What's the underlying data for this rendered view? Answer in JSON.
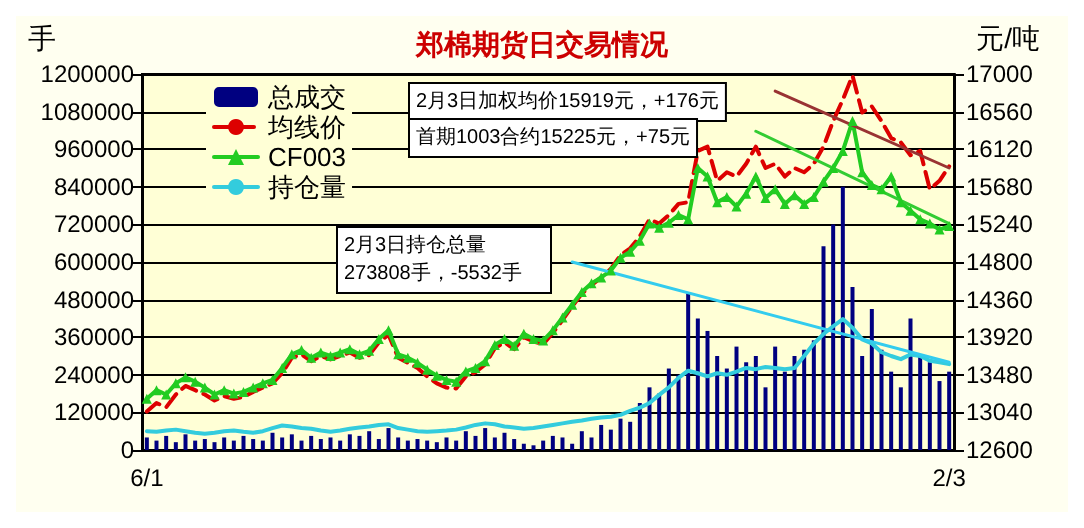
{
  "chart_data": {
    "type": "line",
    "title": "郑棉期货日交易情况",
    "ylabel": "手",
    "y2label": "元/吨",
    "categories": [
      "6/1",
      null,
      null,
      null,
      null,
      null,
      null,
      null,
      null,
      null,
      null,
      null,
      null,
      null,
      null,
      null,
      null,
      null,
      null,
      null,
      null,
      null,
      null,
      null,
      null,
      null,
      null,
      null,
      null,
      null,
      null,
      null,
      null,
      null,
      null,
      null,
      null,
      null,
      null,
      null,
      null,
      null,
      null,
      null,
      null,
      null,
      null,
      null,
      null,
      null,
      null,
      null,
      null,
      null,
      null,
      null,
      null,
      null,
      null,
      null,
      null,
      null,
      null,
      null,
      null,
      null,
      null,
      null,
      null,
      null,
      null,
      null,
      null,
      null,
      null,
      null,
      null,
      null,
      null,
      null,
      null,
      null,
      null,
      "2/3"
    ],
    "ylim": [
      0,
      1200000
    ],
    "yticks": [
      0,
      120000,
      240000,
      360000,
      480000,
      600000,
      720000,
      840000,
      960000,
      1080000,
      1200000
    ],
    "y2lim": [
      12600,
      17000
    ],
    "y2ticks": [
      12600,
      13040,
      13480,
      13920,
      14360,
      14800,
      15240,
      15680,
      16120,
      16560,
      17000
    ],
    "grid": "y",
    "legend": "top left",
    "series": [
      {
        "name": "总成交",
        "type": "bar",
        "color": "#000080",
        "values": [
          40000,
          30000,
          45000,
          25000,
          50000,
          30000,
          35000,
          25000,
          40000,
          30000,
          45000,
          35000,
          30000,
          55000,
          40000,
          50000,
          30000,
          45000,
          35000,
          40000,
          30000,
          50000,
          45000,
          60000,
          35000,
          70000,
          40000,
          30000,
          35000,
          30000,
          25000,
          40000,
          30000,
          60000,
          45000,
          70000,
          40000,
          55000,
          35000,
          20000,
          15000,
          30000,
          45000,
          40000,
          20000,
          60000,
          40000,
          80000,
          65000,
          100000,
          90000,
          150000,
          200000,
          180000,
          260000,
          240000,
          500000,
          420000,
          380000,
          300000,
          260000,
          330000,
          280000,
          300000,
          200000,
          330000,
          250000,
          300000,
          320000,
          350000,
          650000,
          720000,
          840000,
          520000,
          300000,
          450000,
          320000,
          250000,
          200000,
          420000,
          300000,
          280000,
          220000,
          250000
        ]
      },
      {
        "name": "均线价",
        "axis": "y2",
        "color": "#dd0000",
        "line_style": "dashed",
        "marker": "none",
        "values": [
          13050,
          13150,
          13100,
          13250,
          13350,
          13300,
          13250,
          13180,
          13230,
          13200,
          13220,
          13280,
          13330,
          13380,
          13500,
          13680,
          13720,
          13640,
          13700,
          13660,
          13700,
          13740,
          13680,
          13710,
          13860,
          13950,
          13680,
          13620,
          13560,
          13460,
          13380,
          13330,
          13320,
          13460,
          13510,
          13600,
          13790,
          13860,
          13780,
          13920,
          13870,
          13840,
          13970,
          14120,
          14280,
          14430,
          14530,
          14620,
          14720,
          14880,
          14960,
          15100,
          15300,
          15250,
          15350,
          15480,
          15500,
          16100,
          16150,
          15750,
          15850,
          15800,
          15950,
          16150,
          15900,
          15950,
          15800,
          15900,
          15850,
          15950,
          16150,
          16450,
          16700,
          16980,
          16550,
          16620,
          16450,
          16250,
          16200,
          16050,
          16100,
          15650,
          15750,
          15920
        ]
      },
      {
        "name": "CF003",
        "axis": "y2",
        "color": "#22cc22",
        "line_style": "solid",
        "marker": "triangle",
        "values": [
          13200,
          13300,
          13250,
          13380,
          13450,
          13400,
          13330,
          13250,
          13300,
          13260,
          13280,
          13330,
          13380,
          13420,
          13560,
          13720,
          13770,
          13680,
          13740,
          13700,
          13740,
          13780,
          13720,
          13760,
          13900,
          14000,
          13720,
          13680,
          13620,
          13540,
          13470,
          13420,
          13400,
          13520,
          13560,
          13640,
          13830,
          13900,
          13820,
          13960,
          13900,
          13880,
          14000,
          14150,
          14300,
          14450,
          14550,
          14620,
          14700,
          14850,
          14920,
          15050,
          15250,
          15200,
          15260,
          15350,
          15300,
          15900,
          15800,
          15500,
          15560,
          15450,
          15600,
          15800,
          15550,
          15650,
          15480,
          15580,
          15480,
          15560,
          15740,
          15900,
          16100,
          16450,
          15850,
          15700,
          15650,
          15800,
          15500,
          15400,
          15300,
          15250,
          15180,
          15220
        ]
      },
      {
        "name": "持仓量",
        "color": "#33ccdd",
        "line_style": "solid",
        "marker": "none",
        "values": [
          60000,
          58000,
          62000,
          65000,
          60000,
          55000,
          52000,
          55000,
          60000,
          62000,
          58000,
          55000,
          60000,
          70000,
          78000,
          75000,
          70000,
          68000,
          62000,
          58000,
          62000,
          68000,
          72000,
          75000,
          80000,
          82000,
          70000,
          65000,
          60000,
          58000,
          60000,
          62000,
          65000,
          72000,
          80000,
          85000,
          82000,
          75000,
          72000,
          68000,
          70000,
          75000,
          80000,
          85000,
          90000,
          94000,
          100000,
          104000,
          106000,
          112000,
          125000,
          135000,
          150000,
          176000,
          200000,
          230000,
          253000,
          245000,
          235000,
          245000,
          240000,
          250000,
          262000,
          258000,
          265000,
          262000,
          258000,
          262000,
          300000,
          340000,
          370000,
          395000,
          418000,
          390000,
          353000,
          340000,
          312000,
          300000,
          290000,
          305000,
          300000,
          285000,
          280000,
          274000
        ]
      },
      {
        "axis": "y2",
        "color": "#993333",
        "line_style": "solid",
        "marker": "none",
        "values": [
          null,
          null,
          null,
          null,
          null,
          null,
          null,
          null,
          null,
          null,
          null,
          null,
          null,
          null,
          null,
          null,
          null,
          null,
          null,
          null,
          null,
          null,
          null,
          null,
          null,
          null,
          null,
          null,
          null,
          null,
          null,
          null,
          null,
          null,
          null,
          null,
          null,
          null,
          null,
          null,
          null,
          null,
          null,
          null,
          null,
          null,
          null,
          null,
          null,
          null,
          null,
          null,
          null,
          null,
          null,
          null,
          null,
          null,
          null,
          null,
          null,
          null,
          null,
          null,
          null,
          16800,
          null,
          null,
          null,
          null,
          null,
          null,
          null,
          null,
          null,
          null,
          null,
          null,
          null,
          null,
          null,
          null,
          null,
          15900
        ]
      },
      {
        "axis": "y2",
        "color": "#33cc33",
        "line_style": "solid",
        "marker": "none",
        "values": [
          null,
          null,
          null,
          null,
          null,
          null,
          null,
          null,
          null,
          null,
          null,
          null,
          null,
          null,
          null,
          null,
          null,
          null,
          null,
          null,
          null,
          null,
          null,
          null,
          null,
          null,
          null,
          null,
          null,
          null,
          null,
          null,
          null,
          null,
          null,
          null,
          null,
          null,
          null,
          null,
          null,
          null,
          null,
          null,
          null,
          null,
          null,
          null,
          null,
          null,
          null,
          null,
          null,
          null,
          null,
          null,
          null,
          null,
          null,
          null,
          null,
          null,
          null,
          16330,
          null,
          null,
          null,
          null,
          null,
          null,
          null,
          null,
          null,
          null,
          null,
          null,
          null,
          null,
          null,
          null,
          null,
          null,
          null,
          15250
        ]
      },
      {
        "color": "#33ccee",
        "line_style": "solid",
        "marker": "none",
        "values": [
          null,
          null,
          null,
          null,
          null,
          null,
          null,
          null,
          null,
          null,
          null,
          null,
          null,
          null,
          null,
          null,
          null,
          null,
          null,
          null,
          null,
          null,
          null,
          null,
          null,
          null,
          null,
          null,
          null,
          null,
          null,
          null,
          null,
          null,
          null,
          null,
          null,
          null,
          null,
          null,
          null,
          null,
          null,
          null,
          600000,
          null,
          null,
          null,
          null,
          null,
          null,
          null,
          null,
          null,
          null,
          null,
          null,
          null,
          null,
          null,
          null,
          null,
          null,
          null,
          null,
          null,
          null,
          null,
          null,
          null,
          null,
          null,
          null,
          null,
          null,
          null,
          null,
          null,
          null,
          null,
          null,
          null,
          null,
          280000
        ]
      }
    ],
    "annotations": [
      "2月3日加权均价15919元，+176元",
      "首期1003合约15225元，+75元",
      "2月3日持仓总量273808手，-5532手"
    ]
  }
}
